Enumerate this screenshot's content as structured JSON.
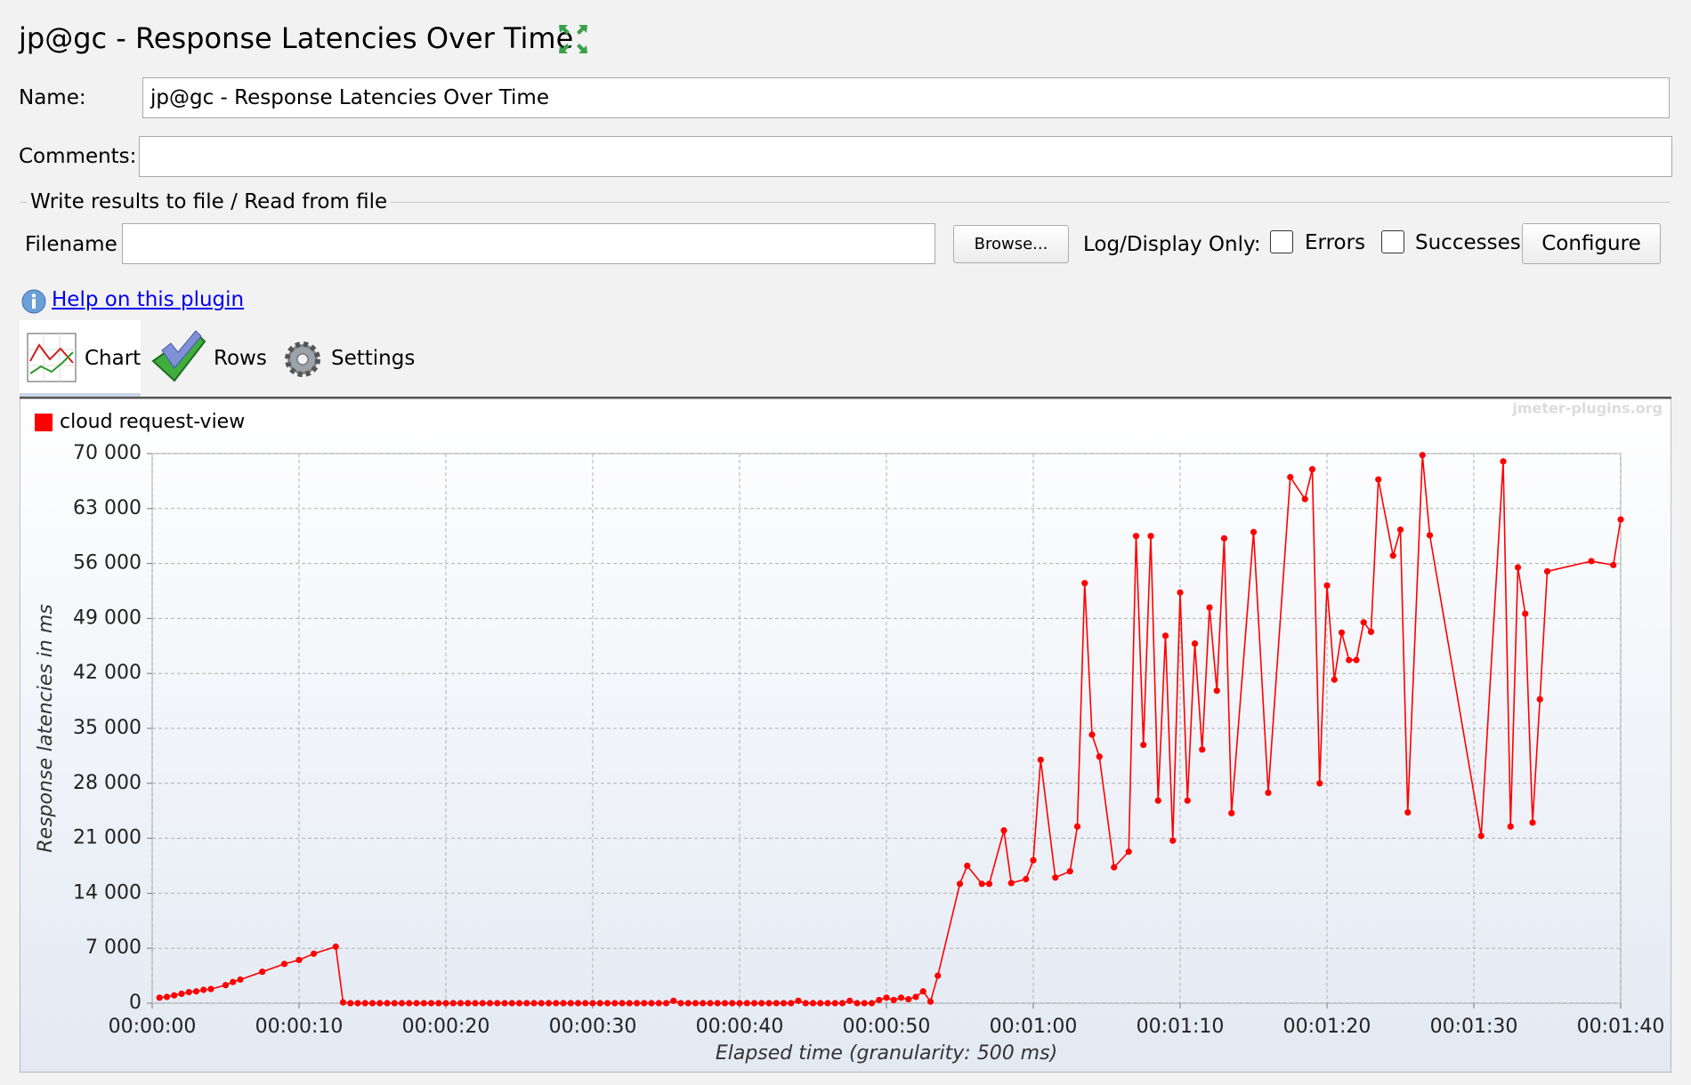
{
  "header": {
    "title": "jp@gc - Response Latencies Over Time"
  },
  "form": {
    "name_label": "Name:",
    "name_value": "jp@gc - Response Latencies Over Time",
    "comments_label": "Comments:",
    "file_section_title": "Write results to file / Read from file",
    "filename_label": "Filename",
    "browse": "Browse...",
    "log_display_label": "Log/Display Only:",
    "errors": "Errors",
    "successes": "Successes",
    "configure": "Configure"
  },
  "help_link": "Help on this plugin",
  "tabs": [
    "Chart",
    "Rows",
    "Settings"
  ],
  "watermark": "jmeter-plugins.org",
  "chart_data": {
    "type": "line",
    "xlabel": "Elapsed time (granularity: 500 ms)",
    "ylabel": "Response latencies in ms",
    "xlim": [
      0,
      100
    ],
    "ylim": [
      0,
      70000
    ],
    "xticks": [
      {
        "value": 0,
        "label": "00:00:00"
      },
      {
        "value": 10,
        "label": "00:00:10"
      },
      {
        "value": 20,
        "label": "00:00:20"
      },
      {
        "value": 30,
        "label": "00:00:30"
      },
      {
        "value": 40,
        "label": "00:00:40"
      },
      {
        "value": 50,
        "label": "00:00:50"
      },
      {
        "value": 60,
        "label": "00:01:00"
      },
      {
        "value": 70,
        "label": "00:01:10"
      },
      {
        "value": 80,
        "label": "00:01:20"
      },
      {
        "value": 90,
        "label": "00:01:30"
      },
      {
        "value": 100,
        "label": "00:01:40"
      }
    ],
    "yticks": [
      0,
      {
        "value": 7000,
        "label": "7 000"
      },
      {
        "value": 14000,
        "label": "14 000"
      },
      {
        "value": 21000,
        "label": "21 000"
      },
      {
        "value": 28000,
        "label": "28 000"
      },
      {
        "value": 35000,
        "label": "35 000"
      },
      {
        "value": 42000,
        "label": "42 000"
      },
      {
        "value": 49000,
        "label": "49 000"
      },
      {
        "value": 56000,
        "label": "56 000"
      },
      {
        "value": 63000,
        "label": "63 000"
      },
      {
        "value": 70000,
        "label": "70 000"
      }
    ],
    "grid": true,
    "legend": "top-left",
    "series": [
      {
        "name": "cloud request-view",
        "color": "#ff0000",
        "x": [
          0.5,
          1,
          1.5,
          2,
          2.5,
          3,
          3.5,
          4,
          5,
          5.5,
          6,
          7.5,
          9,
          10,
          11,
          12.5,
          13,
          13.5,
          14,
          14.5,
          15,
          15.5,
          16,
          16.5,
          17,
          17.5,
          18,
          18.5,
          19,
          19.5,
          20,
          20.5,
          21,
          21.5,
          22,
          22.5,
          23,
          23.5,
          24,
          24.5,
          25,
          25.5,
          26,
          26.5,
          27,
          27.5,
          28,
          28.5,
          29,
          29.5,
          30,
          30.5,
          31,
          31.5,
          32,
          32.5,
          33,
          33.5,
          34,
          34.5,
          35,
          35.5,
          36,
          36.5,
          37,
          37.5,
          38,
          38.5,
          39,
          39.5,
          40,
          40.5,
          41,
          41.5,
          42,
          42.5,
          43,
          43.5,
          44,
          44.5,
          45,
          45.5,
          46,
          46.5,
          47,
          47.5,
          48,
          48.5,
          49,
          49.5,
          50,
          50.5,
          51,
          51.5,
          52,
          52.5,
          53,
          53.5,
          55,
          55.5,
          56.5,
          57,
          58,
          58.5,
          59.5,
          60,
          60.5,
          61.5,
          62.5,
          63,
          63.5,
          64,
          64.5,
          65.5,
          66.5,
          67,
          67.5,
          68,
          68.5,
          69,
          69.5,
          70,
          70.5,
          71,
          71.5,
          72,
          72.5,
          73,
          73.5,
          75,
          76,
          77.5,
          78.5,
          79,
          79.5,
          80,
          80.5,
          81,
          81.5,
          82,
          82.5,
          83,
          83.5,
          84.5,
          85,
          85.5,
          86.5,
          87,
          90.5,
          92,
          92.5,
          93,
          93.5,
          94,
          94.5,
          95,
          98,
          99.5,
          100
        ],
        "values": [
          700,
          800,
          1000,
          1200,
          1400,
          1500,
          1700,
          1800,
          2300,
          2700,
          3000,
          4000,
          5000,
          5500,
          6300,
          7200,
          100,
          0,
          0,
          0,
          0,
          0,
          0,
          0,
          0,
          0,
          0,
          0,
          0,
          0,
          0,
          0,
          0,
          0,
          0,
          0,
          0,
          0,
          0,
          0,
          0,
          0,
          0,
          0,
          0,
          0,
          0,
          0,
          0,
          0,
          0,
          0,
          0,
          0,
          0,
          0,
          0,
          0,
          0,
          0,
          0,
          300,
          0,
          0,
          0,
          0,
          0,
          0,
          0,
          0,
          0,
          0,
          0,
          0,
          0,
          0,
          0,
          0,
          300,
          0,
          0,
          0,
          0,
          0,
          0,
          300,
          0,
          0,
          0,
          400,
          700,
          400,
          700,
          500,
          800,
          1500,
          200,
          3500,
          15200,
          17500,
          15200,
          15200,
          22000,
          15300,
          15800,
          18200,
          31000,
          16000,
          16800,
          22500,
          53500,
          34200,
          31400,
          17300,
          19300,
          59500,
          32900,
          59500,
          25800,
          46800,
          20700,
          52300,
          25800,
          45800,
          32300,
          50400,
          39800,
          59200,
          24200,
          60000,
          26800,
          67000,
          64200,
          68000,
          28000,
          53200,
          41200,
          47200,
          43700,
          43700,
          48500,
          47300,
          66700,
          57000,
          60300,
          24300,
          69800,
          59600,
          21300,
          69000,
          22500,
          55500,
          49600,
          23000,
          38700,
          55000,
          56300,
          55800,
          61600
        ]
      }
    ]
  }
}
